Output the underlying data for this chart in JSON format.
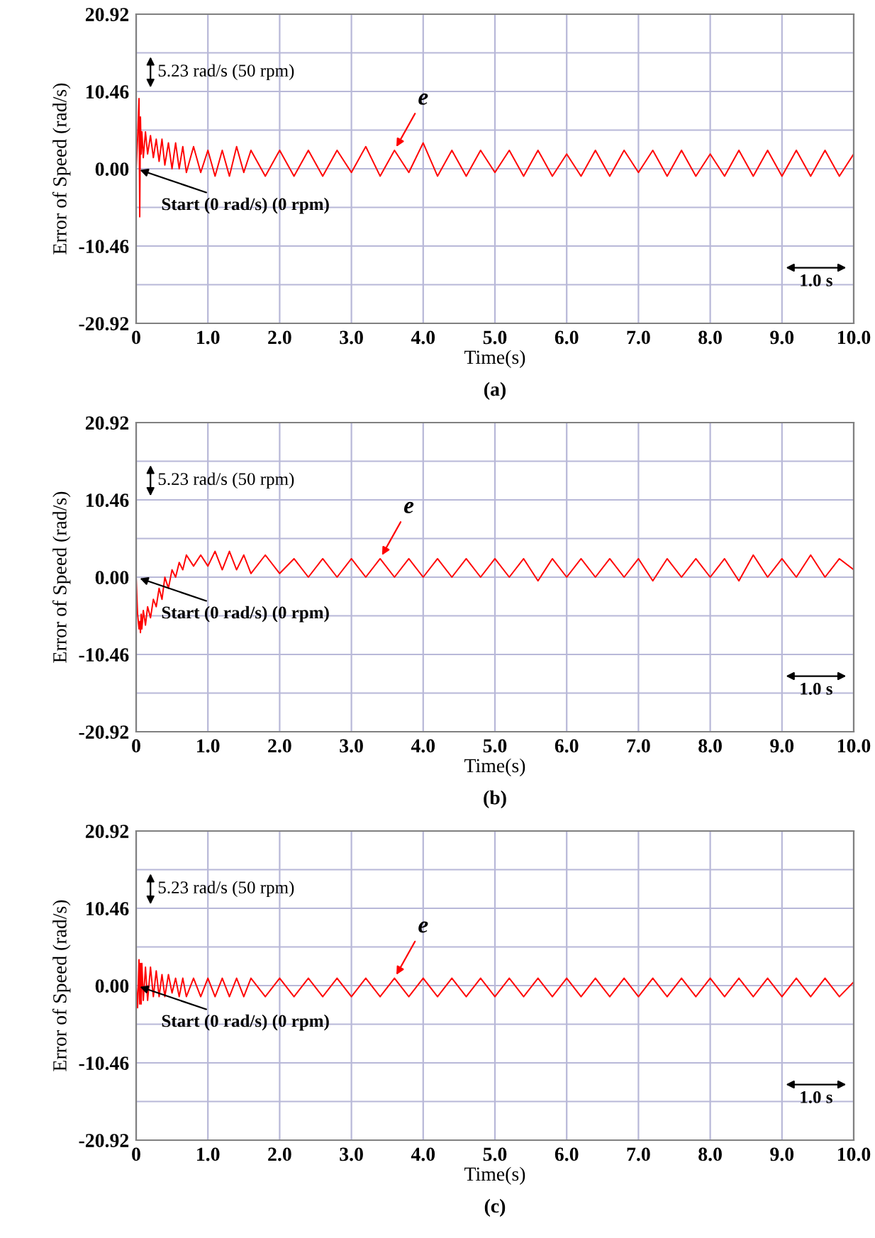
{
  "chart_data": [
    {
      "type": "line",
      "xlabel": "Time(s)",
      "ylabel": "Error of Speed (rad/s)",
      "xlim": [
        0,
        10
      ],
      "ylim": [
        -20.92,
        20.92
      ],
      "grid": true,
      "xticks": [
        0,
        {
          "value": 1,
          "label": "1.0"
        },
        {
          "value": 2,
          "label": "2.0"
        },
        {
          "value": 3,
          "label": "3.0"
        },
        {
          "value": 4,
          "label": "4.0"
        },
        {
          "value": 5,
          "label": "5.0"
        },
        {
          "value": 6,
          "label": "6.0"
        },
        {
          "value": 7,
          "label": "7.0"
        },
        {
          "value": 8,
          "label": "8.0"
        },
        {
          "value": 9,
          "label": "9.0"
        },
        {
          "value": 10,
          "label": "10.0"
        }
      ],
      "yticks": [
        -20.92,
        {
          "value": -15.69,
          "label": null
        },
        -10.46,
        {
          "value": -5.23,
          "label": null
        },
        {
          "value": 0,
          "label": "0.00"
        },
        {
          "value": 5.23,
          "label": null
        },
        10.46,
        {
          "value": 15.69,
          "label": null
        },
        20.92
      ],
      "x": [
        0,
        0.02,
        0.04,
        0.05,
        0.06,
        0.07,
        0.08,
        0.1,
        0.13,
        0.16,
        0.2,
        0.24,
        0.28,
        0.32,
        0.36,
        0.4,
        0.45,
        0.5,
        0.55,
        0.6,
        0.65,
        0.7,
        0.8,
        0.9,
        1.0,
        1.1,
        1.2,
        1.3,
        1.4,
        1.5,
        1.6,
        1.8,
        2.0,
        2.2,
        2.4,
        2.6,
        2.8,
        3.0,
        3.2,
        3.4,
        3.6,
        3.8,
        4.0,
        4.2,
        4.4,
        4.6,
        4.8,
        5.0,
        5.2,
        5.4,
        5.6,
        5.8,
        6.0,
        6.2,
        6.4,
        6.6,
        6.8,
        7.0,
        7.2,
        7.4,
        7.6,
        7.8,
        8.0,
        8.2,
        8.4,
        8.6,
        8.8,
        9.0,
        9.2,
        9.4,
        9.6,
        9.8,
        10.0
      ],
      "series": [
        {
          "color": "#ff0000",
          "values": [
            0,
            4,
            9.5,
            -6.5,
            7,
            2,
            5,
            1.5,
            5,
            2,
            4.5,
            1.5,
            4,
            1,
            4,
            0.5,
            3.5,
            0,
            3.5,
            0,
            3,
            -0.5,
            3,
            -0.5,
            2.5,
            -1,
            2.5,
            -1,
            3,
            -0.5,
            2.5,
            -1,
            2.5,
            -1,
            2.5,
            -1,
            2.5,
            -0.5,
            3,
            -1,
            2.5,
            -0.5,
            3.5,
            -1,
            2.5,
            -1,
            2.5,
            -0.5,
            2.5,
            -1,
            2.5,
            -1,
            2,
            -1,
            2.5,
            -1,
            2.5,
            -0.5,
            2.5,
            -1,
            2.5,
            -1,
            2,
            -1,
            2.5,
            -1,
            2.5,
            -1,
            2.5,
            -1,
            2.5,
            -1,
            2
          ]
        }
      ],
      "annotations": [
        "5.23 rad/s (50 rpm)",
        {
          "text": "Start (0 rad/s) (0 rpm)",
          "x": 0,
          "y": 0
        },
        {
          "text": "e",
          "x": 3.6,
          "y": 2.5
        },
        "1.0 s",
        "(a)"
      ]
    },
    {
      "type": "line",
      "xlabel": "Time(s)",
      "ylabel": "Error of Speed (rad/s)",
      "xlim": [
        0,
        10
      ],
      "ylim": [
        -20.92,
        20.92
      ],
      "grid": true,
      "xticks": [
        0,
        {
          "value": 1,
          "label": "1.0"
        },
        {
          "value": 2,
          "label": "2.0"
        },
        {
          "value": 3,
          "label": "3.0"
        },
        {
          "value": 4,
          "label": "4.0"
        },
        {
          "value": 5,
          "label": "5.0"
        },
        {
          "value": 6,
          "label": "6.0"
        },
        {
          "value": 7,
          "label": "7.0"
        },
        {
          "value": 8,
          "label": "8.0"
        },
        {
          "value": 9,
          "label": "9.0"
        },
        {
          "value": 10,
          "label": "10.0"
        }
      ],
      "yticks": [
        -20.92,
        {
          "value": -15.69,
          "label": null
        },
        -10.46,
        {
          "value": -5.23,
          "label": null
        },
        {
          "value": 0,
          "label": "0.00"
        },
        {
          "value": 5.23,
          "label": null
        },
        10.46,
        {
          "value": 15.69,
          "label": null
        },
        20.92
      ],
      "x": [
        0,
        0.02,
        0.04,
        0.05,
        0.06,
        0.07,
        0.08,
        0.1,
        0.13,
        0.16,
        0.2,
        0.24,
        0.28,
        0.32,
        0.36,
        0.4,
        0.45,
        0.5,
        0.55,
        0.6,
        0.65,
        0.7,
        0.8,
        0.9,
        1.0,
        1.1,
        1.2,
        1.3,
        1.4,
        1.5,
        1.6,
        1.8,
        2.0,
        2.2,
        2.4,
        2.6,
        2.8,
        3.0,
        3.2,
        3.4,
        3.6,
        3.8,
        4.0,
        4.2,
        4.4,
        4.6,
        4.8,
        5.0,
        5.2,
        5.4,
        5.6,
        5.8,
        6.0,
        6.2,
        6.4,
        6.6,
        6.8,
        7.0,
        7.2,
        7.4,
        7.6,
        7.8,
        8.0,
        8.2,
        8.4,
        8.6,
        8.8,
        9.0,
        9.2,
        9.4,
        9.6,
        9.8,
        10.0
      ],
      "series": [
        {
          "color": "#ff0000",
          "values": [
            0,
            -5,
            -7,
            -6,
            -7.5,
            -5,
            -7,
            -4.5,
            -6.5,
            -4,
            -5.5,
            -3,
            -4,
            -1.5,
            -3,
            0,
            -1.5,
            1,
            0,
            2,
            1,
            3,
            1.5,
            3,
            1.5,
            3.5,
            1,
            3.5,
            1,
            3,
            0.5,
            3,
            0.5,
            2.5,
            0,
            2.5,
            0,
            2.5,
            0,
            2.5,
            0,
            2.5,
            0,
            2.5,
            0,
            2.5,
            0,
            2.5,
            0,
            2.5,
            -0.5,
            2.5,
            0,
            2.5,
            0,
            2.5,
            0,
            2.5,
            -0.5,
            2.5,
            0,
            2.5,
            0,
            2.5,
            -0.5,
            3,
            0,
            2.5,
            0,
            3,
            0,
            2.5,
            1
          ]
        }
      ],
      "annotations": [
        "5.23 rad/s (50 rpm)",
        {
          "text": "Start (0 rad/s) (0 rpm)",
          "x": 0,
          "y": 0
        },
        {
          "text": "e",
          "x": 3.4,
          "y": 2.5
        },
        "1.0 s",
        "(b)"
      ]
    },
    {
      "type": "line",
      "xlabel": "Time(s)",
      "ylabel": "Error of Speed (rad/s)",
      "xlim": [
        0,
        10
      ],
      "ylim": [
        -20.92,
        20.92
      ],
      "grid": true,
      "xticks": [
        0,
        {
          "value": 1,
          "label": "1.0"
        },
        {
          "value": 2,
          "label": "2.0"
        },
        {
          "value": 3,
          "label": "3.0"
        },
        {
          "value": 4,
          "label": "4.0"
        },
        {
          "value": 5,
          "label": "5.0"
        },
        {
          "value": 6,
          "label": "6.0"
        },
        {
          "value": 7,
          "label": "7.0"
        },
        {
          "value": 8,
          "label": "8.0"
        },
        {
          "value": 9,
          "label": "9.0"
        },
        {
          "value": 10,
          "label": "10.0"
        }
      ],
      "yticks": [
        -20.92,
        {
          "value": -15.69,
          "label": null
        },
        -10.46,
        {
          "value": -5.23,
          "label": null
        },
        {
          "value": 0,
          "label": "0.00"
        },
        {
          "value": 5.23,
          "label": null
        },
        10.46,
        {
          "value": 15.69,
          "label": null
        },
        20.92
      ],
      "x": [
        0,
        0.02,
        0.04,
        0.05,
        0.06,
        0.07,
        0.08,
        0.1,
        0.13,
        0.16,
        0.2,
        0.24,
        0.28,
        0.32,
        0.36,
        0.4,
        0.45,
        0.5,
        0.55,
        0.6,
        0.65,
        0.7,
        0.8,
        0.9,
        1.0,
        1.1,
        1.2,
        1.3,
        1.4,
        1.5,
        1.6,
        1.8,
        2.0,
        2.2,
        2.4,
        2.6,
        2.8,
        3.0,
        3.2,
        3.4,
        3.6,
        3.8,
        4.0,
        4.2,
        4.4,
        4.6,
        4.8,
        5.0,
        5.2,
        5.4,
        5.6,
        5.8,
        6.0,
        6.2,
        6.4,
        6.6,
        6.8,
        7.0,
        7.2,
        7.4,
        7.6,
        7.8,
        8.0,
        8.2,
        8.4,
        8.6,
        8.8,
        9.0,
        9.2,
        9.4,
        9.6,
        9.8,
        10.0
      ],
      "series": [
        {
          "color": "#ff0000",
          "values": [
            0,
            -3,
            3.5,
            -2.5,
            3,
            -2.5,
            3,
            -2,
            2.5,
            -2,
            2.5,
            -1.5,
            2,
            -1.5,
            1.5,
            -1.5,
            1.5,
            -1,
            1,
            -1.5,
            1,
            -1.5,
            1,
            -1.5,
            1,
            -1.5,
            1,
            -1.5,
            1,
            -1.5,
            1,
            -1.5,
            1,
            -1.5,
            1,
            -1.5,
            1,
            -1.5,
            1,
            -1.5,
            1,
            -1.5,
            1,
            -1.5,
            1,
            -1.5,
            1,
            -1.5,
            1,
            -1.5,
            1,
            -1.5,
            1,
            -1.5,
            1,
            -1.5,
            1,
            -1.5,
            1,
            -1.5,
            1,
            -1.5,
            1,
            -1.5,
            1,
            -1.5,
            1,
            -1.5,
            1,
            -1.5,
            1,
            -1.5,
            0.5
          ]
        }
      ],
      "annotations": [
        "5.23 rad/s (50 rpm)",
        {
          "text": "Start (0 rad/s) (0 rpm)",
          "x": 0,
          "y": 0
        },
        {
          "text": "e",
          "x": 3.6,
          "y": 1
        },
        "1.0 s",
        "(c)"
      ]
    }
  ]
}
